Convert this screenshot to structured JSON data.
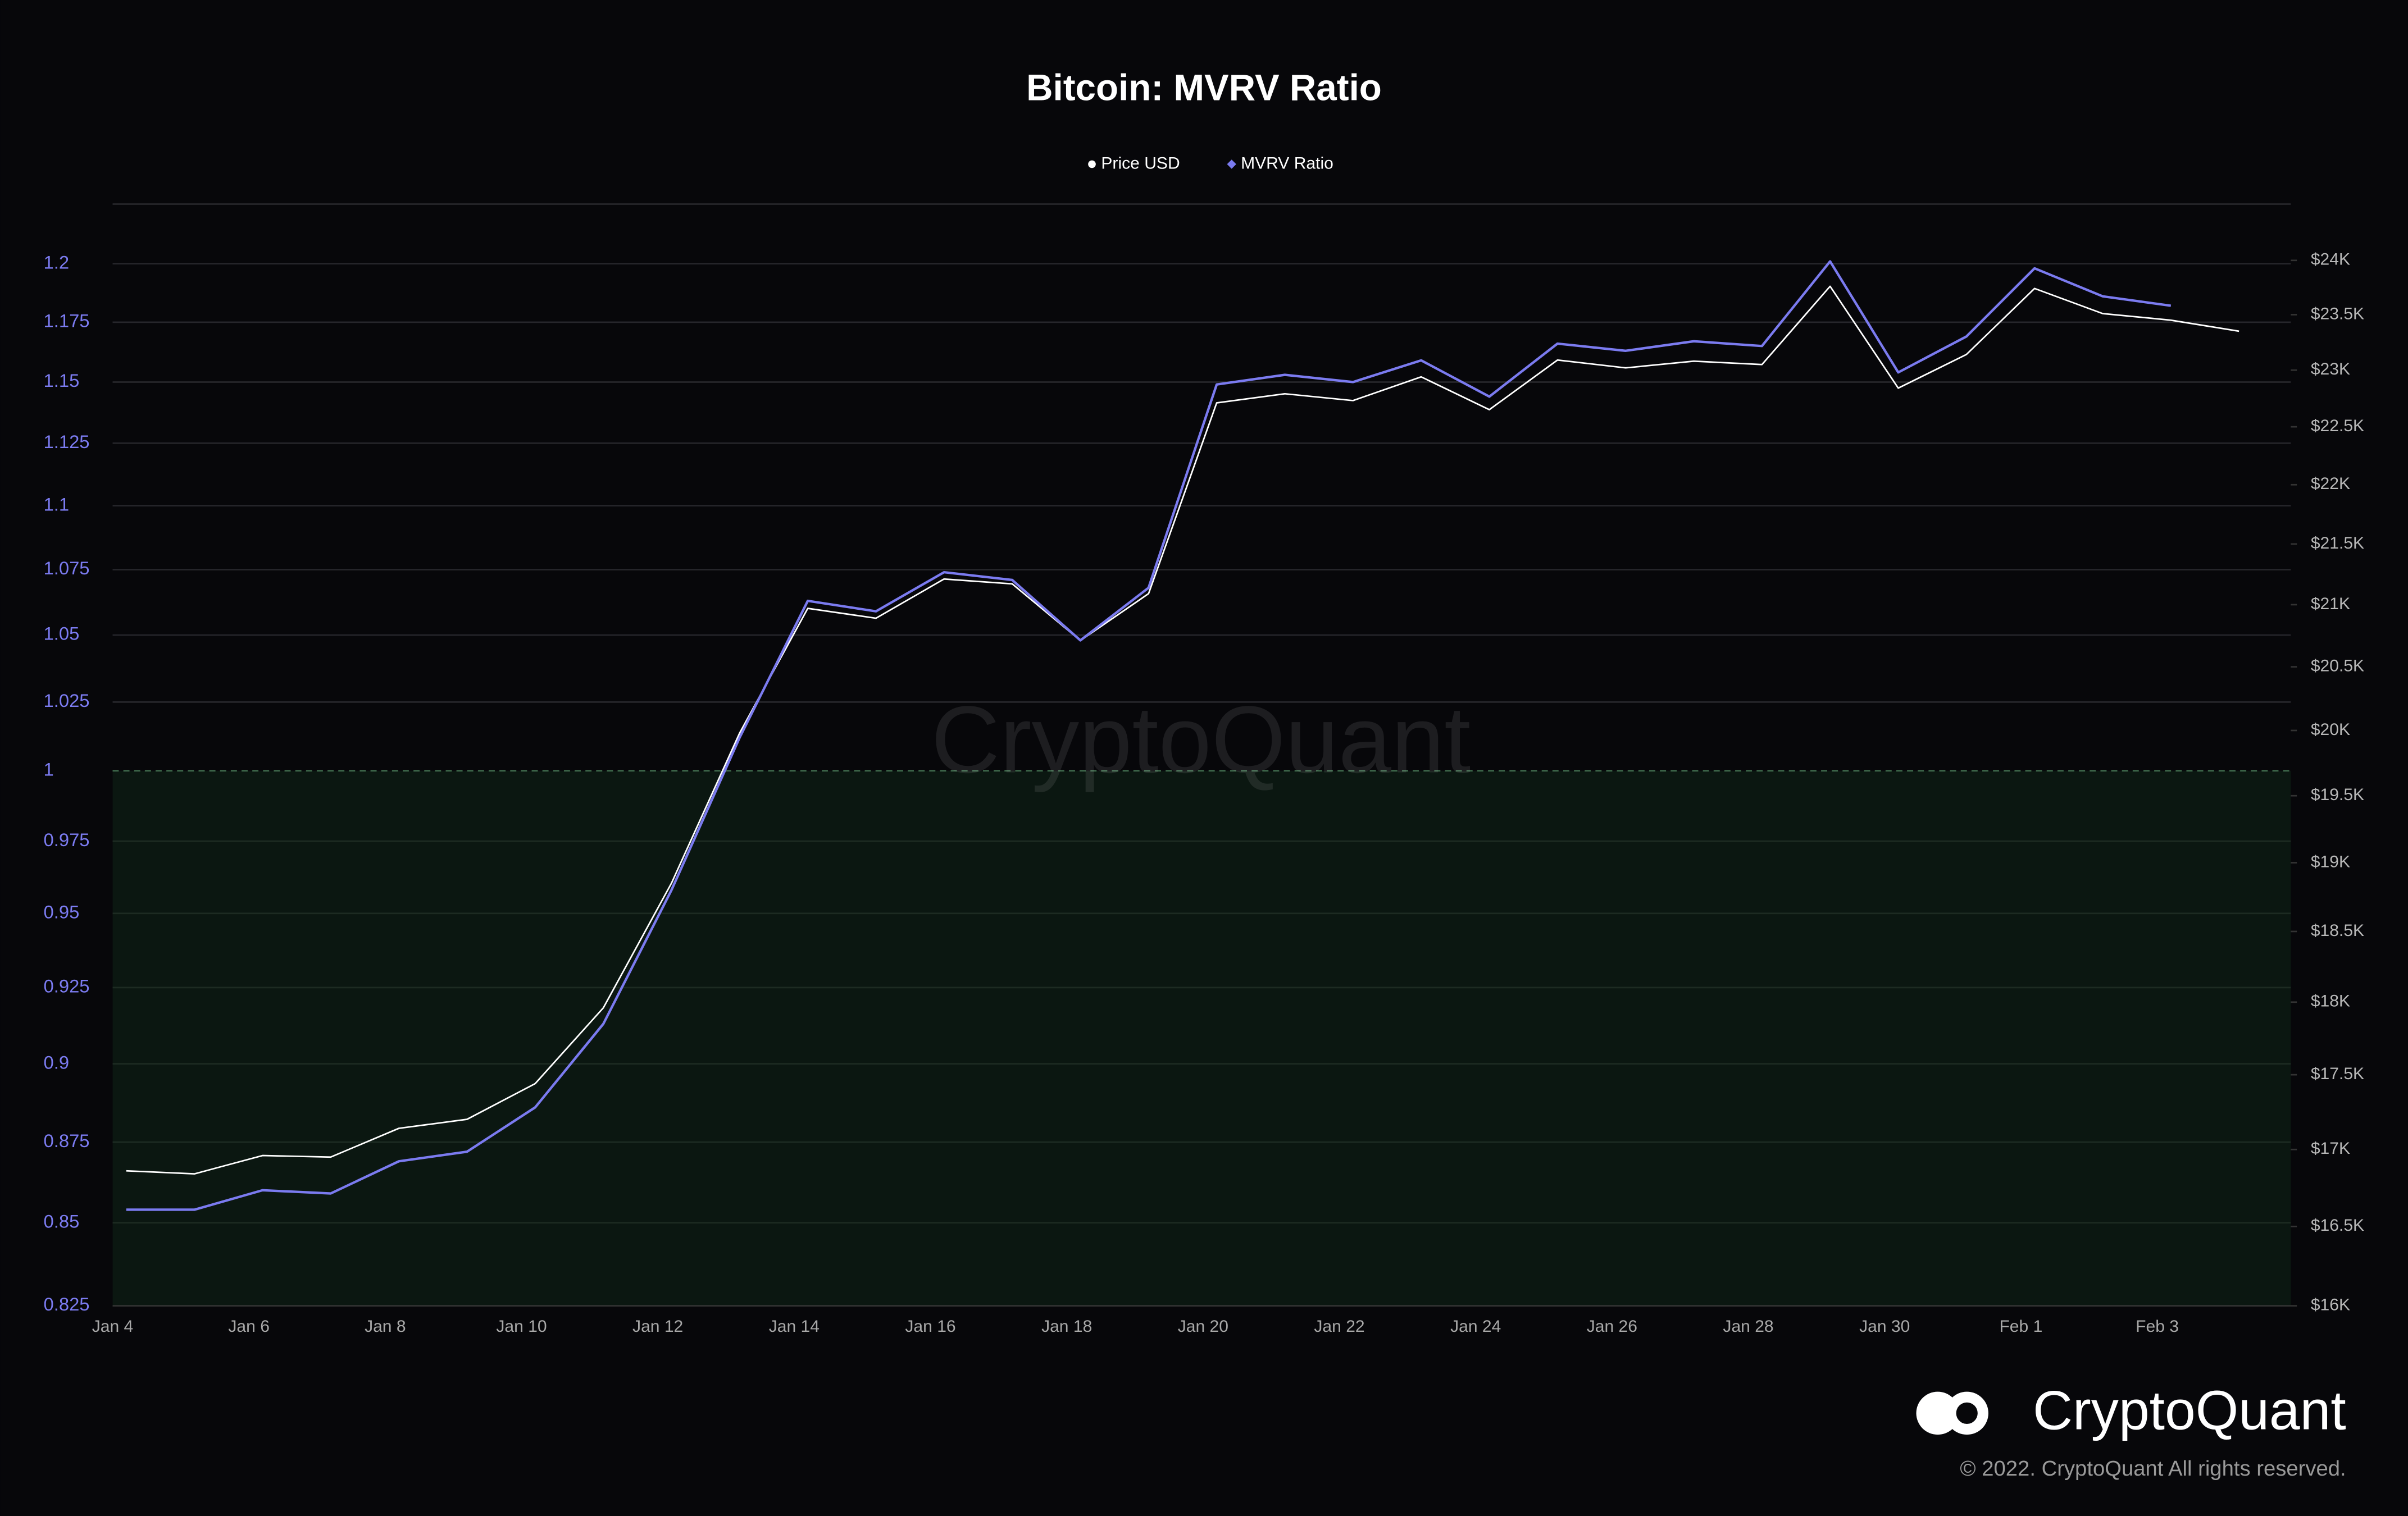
{
  "chart_data": {
    "type": "line",
    "title": "Bitcoin: MVRV Ratio",
    "watermark": "CryptoQuant",
    "brand": "CryptoQuant",
    "copyright": "© 2022. CryptoQuant All rights reserved.",
    "categories": [
      "Jan 4",
      null,
      "Jan 6",
      null,
      "Jan 8",
      null,
      "Jan 10",
      null,
      "Jan 12",
      null,
      "Jan 14",
      null,
      "Jan 16",
      null,
      "Jan 18",
      null,
      "Jan 20",
      null,
      "Jan 22",
      null,
      "Jan 24",
      null,
      "Jan 26",
      null,
      "Jan 28",
      null,
      "Jan 30",
      null,
      "Feb 1",
      null,
      "Feb 3",
      null
    ],
    "series": [
      {
        "name": "Price USD",
        "color": "#ffffff",
        "marker": "circle",
        "axis": "y2",
        "values": [
          16860,
          16840,
          16960,
          16950,
          17140,
          17200,
          17440,
          17960,
          18850,
          19980,
          20970,
          20890,
          21210,
          21170,
          20710,
          21090,
          22710,
          22790,
          22730,
          22940,
          22650,
          23090,
          23020,
          23080,
          23050,
          23760,
          22840,
          23140,
          23740,
          23510,
          23450,
          23350
        ]
      },
      {
        "name": "MVRV Ratio",
        "color": "#7b7bf0",
        "marker": "diamond",
        "values": [
          0.854,
          0.854,
          0.86,
          0.859,
          0.869,
          0.872,
          0.886,
          0.913,
          0.958,
          1.012,
          1.063,
          1.059,
          1.074,
          1.071,
          1.048,
          1.068,
          1.149,
          1.153,
          1.15,
          1.159,
          1.144,
          1.166,
          1.163,
          1.167,
          1.165,
          1.201,
          1.154,
          1.169,
          1.198,
          1.186,
          1.182,
          null
        ]
      }
    ],
    "ylim": [
      0.825,
      1.226
    ],
    "yticks": [
      0.825,
      0.85,
      0.875,
      0.9,
      0.925,
      0.95,
      0.975,
      1,
      1.025,
      1.05,
      1.075,
      1.1,
      1.125,
      1.15,
      1.175,
      1.2
    ],
    "y2lim": [
      16000,
      24530
    ],
    "y2ticks": [
      {
        "value": 16000,
        "label": "$16K"
      },
      {
        "value": 16500,
        "label": "$16.5K"
      },
      {
        "value": 17000,
        "label": "$17K"
      },
      {
        "value": 17500,
        "label": "$17.5K"
      },
      {
        "value": 18000,
        "label": "$18K"
      },
      {
        "value": 18500,
        "label": "$18.5K"
      },
      {
        "value": 19000,
        "label": "$19K"
      },
      {
        "value": 19500,
        "label": "$19.5K"
      },
      {
        "value": 20000,
        "label": "$20K"
      },
      {
        "value": 20500,
        "label": "$20.5K"
      },
      {
        "value": 21000,
        "label": "$21K"
      },
      {
        "value": 21500,
        "label": "$21.5K"
      },
      {
        "value": 22000,
        "label": "$22K"
      },
      {
        "value": 22500,
        "label": "$22.5K"
      },
      {
        "value": 23000,
        "label": "$23K"
      },
      {
        "value": 23500,
        "label": "$23.5K"
      },
      {
        "value": 24000,
        "label": "$24K"
      }
    ],
    "log_scale": true,
    "grid": true,
    "shade_below": 1,
    "shade_color": "#0b1711"
  }
}
